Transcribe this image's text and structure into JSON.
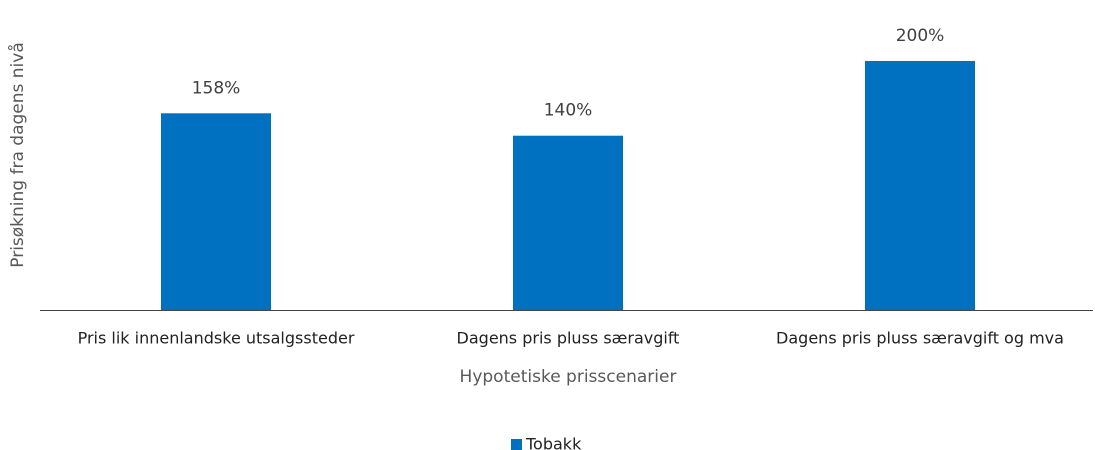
{
  "chart_data": {
    "type": "bar",
    "y_label": "Prisøkning fra dagens nivå",
    "x_label": "Hypotetiske prisscenarier",
    "categories": [
      "Pris lik innenlandske utsalgssteder",
      "Dagens pris pluss særavgift",
      "Dagens pris pluss særavgift og mva"
    ],
    "series": [
      {
        "name": "Tobakk",
        "color": "#0070c0",
        "values": [
          158,
          140,
          200
        ],
        "value_labels": [
          "158%",
          "140%",
          "200%"
        ]
      }
    ]
  }
}
